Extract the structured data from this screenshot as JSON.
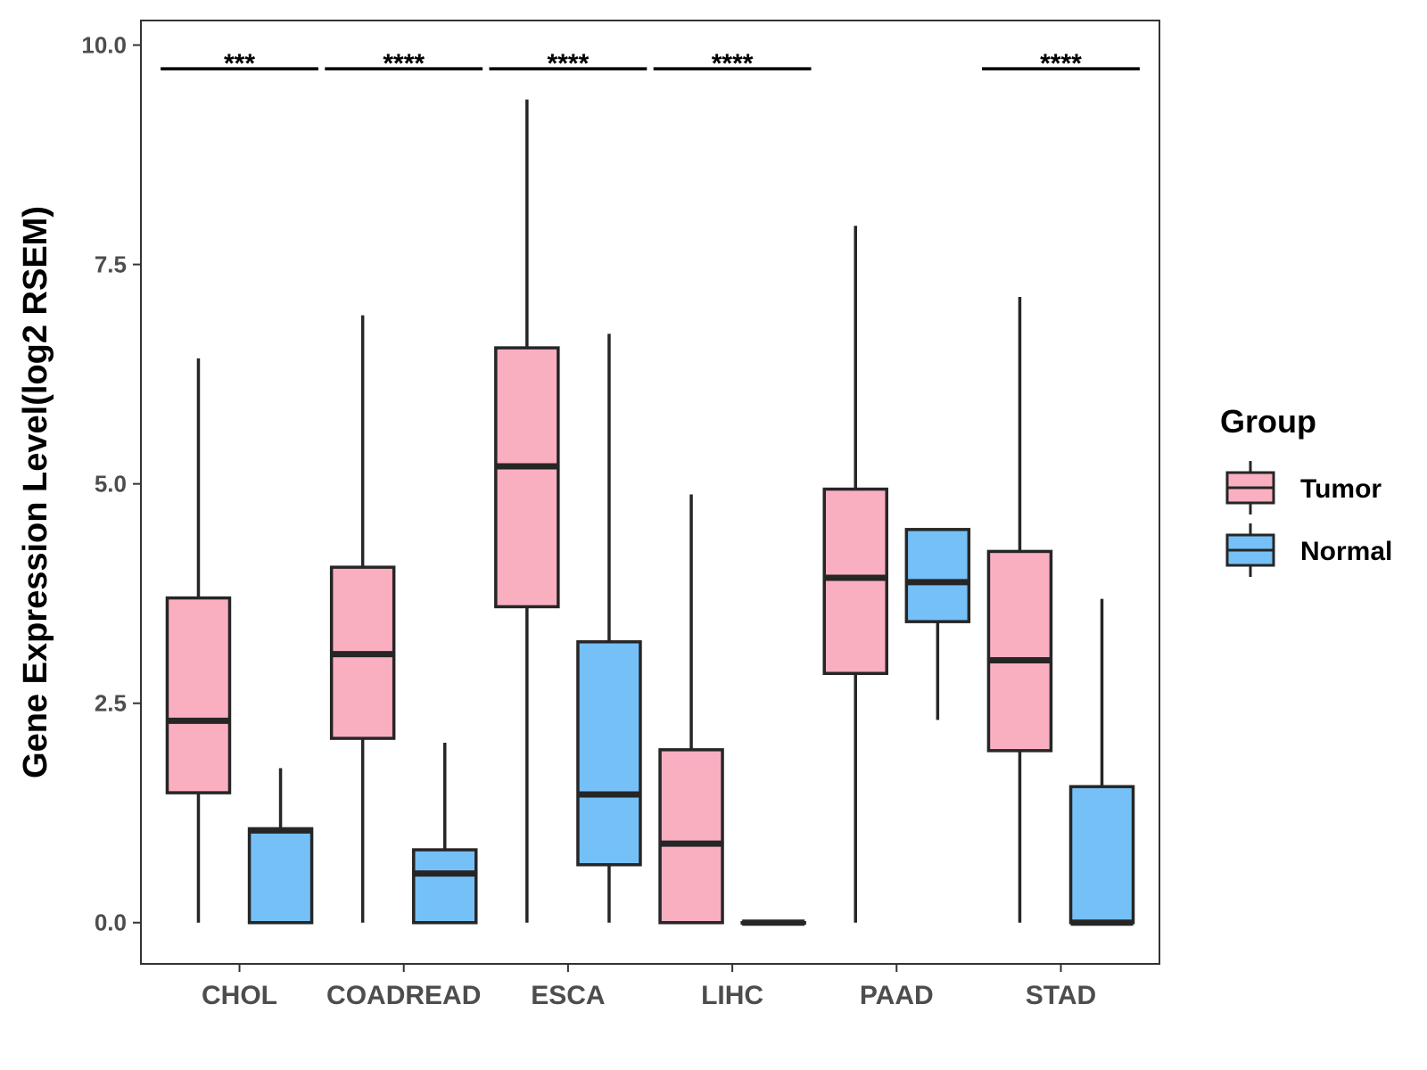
{
  "chart_data": {
    "type": "boxplot",
    "title": "",
    "xlabel": "",
    "ylabel": "Gene Expression Level(log2 RSEM)",
    "ylim": [
      -0.47,
      10.28
    ],
    "yticks": [
      0.0,
      2.5,
      5.0,
      7.5,
      10.0
    ],
    "ytick_labels": [
      "0.0",
      "2.5",
      "5.0",
      "7.5",
      "10.0"
    ],
    "categories": [
      "CHOL",
      "COADREAD",
      "ESCA",
      "LIHC",
      "PAAD",
      "STAD"
    ],
    "legend": {
      "title": "Group",
      "position": "right",
      "items": [
        {
          "label": "Tumor",
          "color": "#FAAFC0"
        },
        {
          "label": "Normal",
          "color": "#75C1F7"
        }
      ]
    },
    "series": [
      {
        "name": "Tumor",
        "color": "#FAAFC0",
        "boxes": [
          {
            "min": 0.0,
            "q1": 1.48,
            "median": 2.3,
            "q3": 3.7,
            "max": 6.43
          },
          {
            "min": 0.0,
            "q1": 2.1,
            "median": 3.06,
            "q3": 4.05,
            "max": 6.92
          },
          {
            "min": 0.0,
            "q1": 3.6,
            "median": 5.2,
            "q3": 6.55,
            "max": 9.38
          },
          {
            "min": 0.0,
            "q1": 0.0,
            "median": 0.9,
            "q3": 1.97,
            "max": 4.88
          },
          {
            "min": 0.0,
            "q1": 2.84,
            "median": 3.93,
            "q3": 4.94,
            "max": 7.94
          },
          {
            "min": 0.0,
            "q1": 1.96,
            "median": 2.99,
            "q3": 4.23,
            "max": 7.13
          }
        ]
      },
      {
        "name": "Normal",
        "color": "#75C1F7",
        "boxes": [
          {
            "min": 0.0,
            "q1": 0.0,
            "median": 1.05,
            "q3": 1.07,
            "max": 1.76
          },
          {
            "min": 0.0,
            "q1": 0.0,
            "median": 0.56,
            "q3": 0.83,
            "max": 2.05
          },
          {
            "min": 0.0,
            "q1": 0.66,
            "median": 1.46,
            "q3": 3.2,
            "max": 6.71
          },
          {
            "min": 0.0,
            "q1": 0.0,
            "median": 0.0,
            "q3": 0.0,
            "max": 0.0
          },
          {
            "min": 2.31,
            "q1": 3.43,
            "median": 3.88,
            "q3": 4.48,
            "max": 4.48
          },
          {
            "min": 0.0,
            "q1": 0.0,
            "median": 0.0,
            "q3": 1.55,
            "max": 3.69
          }
        ]
      }
    ],
    "significance": [
      "***",
      "****",
      "****",
      "****",
      "",
      "****"
    ],
    "significance_y": 9.73
  }
}
